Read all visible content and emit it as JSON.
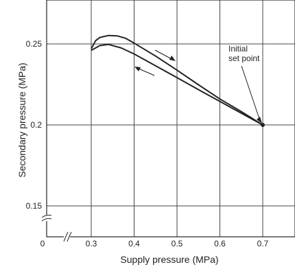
{
  "chart_data": {
    "type": "line",
    "xlabel": "Supply pressure (MPa)",
    "ylabel": "Secondary pressure (MPa)",
    "xlim": [
      0.3,
      0.7
    ],
    "ylim": [
      0.15,
      0.25
    ],
    "axis_break_x": true,
    "axis_break_y": true,
    "x_ticks": [
      "0",
      "0.3",
      "0.4",
      "0.5",
      "0.6",
      "0.7"
    ],
    "y_ticks": [
      "0.15",
      "0.2",
      "0.25"
    ],
    "grid": true,
    "series": [
      {
        "direction": "increasing",
        "x": [
          0.3,
          0.31,
          0.32,
          0.34,
          0.36,
          0.38,
          0.4,
          0.45,
          0.5,
          0.55,
          0.6,
          0.65,
          0.7
        ],
        "y": [
          0.247,
          0.252,
          0.254,
          0.2552,
          0.255,
          0.2535,
          0.2505,
          0.2425,
          0.2338,
          0.2248,
          0.216,
          0.2082,
          0.2
        ]
      },
      {
        "direction": "decreasing",
        "x": [
          0.7,
          0.65,
          0.6,
          0.55,
          0.5,
          0.45,
          0.4,
          0.37,
          0.34,
          0.32,
          0.3
        ],
        "y": [
          0.2,
          0.2072,
          0.2145,
          0.2218,
          0.2292,
          0.2365,
          0.2438,
          0.2475,
          0.2497,
          0.249,
          0.246
        ]
      }
    ],
    "annotations": [
      {
        "text_lines": [
          "Initial",
          "set point"
        ],
        "points_to": [
          0.7,
          0.2
        ]
      }
    ],
    "markers": [
      {
        "x": 0.7,
        "y": 0.2
      }
    ]
  }
}
